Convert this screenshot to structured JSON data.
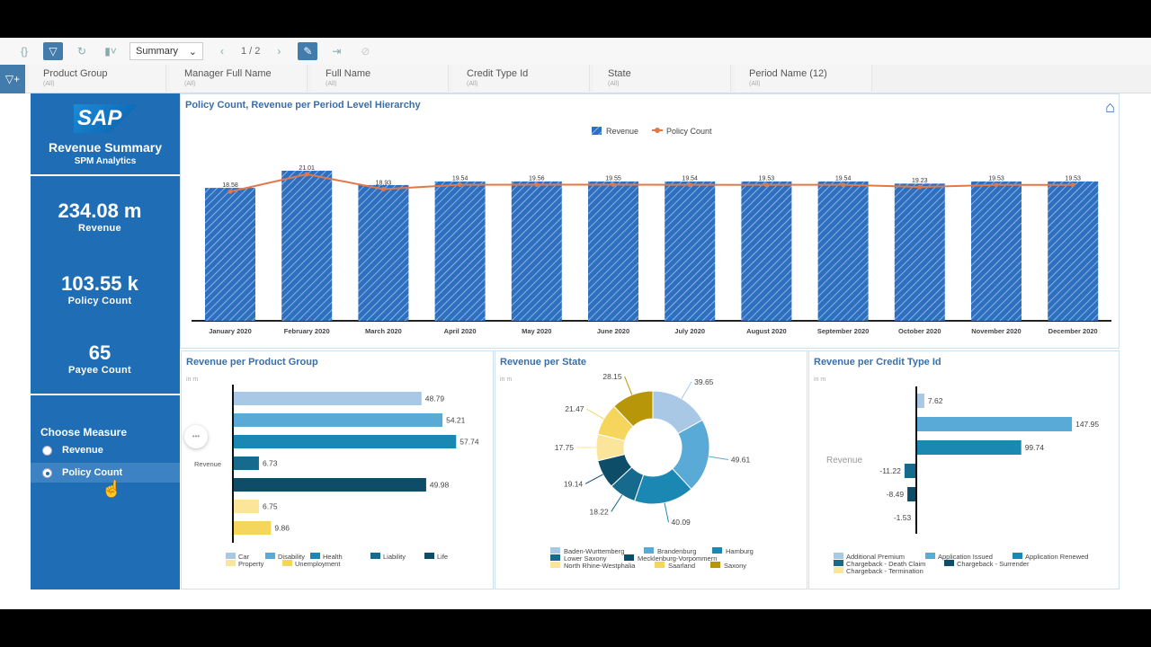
{
  "toolbar": {
    "story_menu": "{}",
    "page_select": "Summary",
    "page_nav": "1 / 2",
    "icons": [
      "braces-icon",
      "filter-icon",
      "refresh-icon",
      "bookmark-icon",
      "pin-icon",
      "export-icon",
      "disabled-icon"
    ]
  },
  "filters": [
    {
      "label": "Product Group",
      "value": "(All)"
    },
    {
      "label": "Manager Full Name",
      "value": "(All)"
    },
    {
      "label": "Full Name",
      "value": "(All)"
    },
    {
      "label": "Credit Type Id",
      "value": "(All)"
    },
    {
      "label": "State",
      "value": "(All)"
    },
    {
      "label": "Period Name (12)",
      "value": "(All)"
    }
  ],
  "sidebar": {
    "logo": "SAP",
    "title": "Revenue Summary",
    "subtitle": "SPM Analytics",
    "kpis": [
      {
        "value": "234.08 m",
        "label": "Revenue"
      },
      {
        "value": "103.55 k",
        "label": "Policy Count"
      },
      {
        "value": "65",
        "label": "Payee Count"
      }
    ],
    "measure_title": "Choose Measure",
    "options": [
      {
        "label": "Revenue",
        "selected": false
      },
      {
        "label": "Policy Count",
        "selected": true
      }
    ]
  },
  "colors": {
    "brand": "#1f6db5",
    "revenue": "#2f6fbf",
    "policy_line": "#e0784a"
  },
  "chart_data": [
    {
      "type": "bar+line",
      "title": "Policy Count, Revenue per Period Level Hierarchy",
      "legend": [
        "Revenue",
        "Policy Count"
      ],
      "legend_position": "top",
      "categories": [
        "January 2020",
        "February 2020",
        "March 2020",
        "April 2020",
        "May 2020",
        "June 2020",
        "July 2020",
        "August 2020",
        "September 2020",
        "October 2020",
        "November 2020",
        "December 2020"
      ],
      "series": [
        {
          "name": "Revenue",
          "type": "bar",
          "values": [
            18.6,
            21.0,
            19.0,
            19.5,
            19.5,
            19.5,
            19.5,
            19.5,
            19.5,
            19.2,
            19.5,
            19.5
          ]
        },
        {
          "name": "Policy Count",
          "type": "line",
          "values": [
            18.58,
            21.01,
            18.93,
            19.54,
            19.56,
            19.55,
            19.54,
            19.53,
            19.54,
            19.23,
            19.53,
            19.53
          ]
        }
      ]
    },
    {
      "type": "bar",
      "orientation": "horizontal",
      "title": "Revenue per Product Group",
      "unit": "in m",
      "axis_label": "Revenue",
      "categories": [
        "Car",
        "Disability",
        "Health",
        "Liability",
        "Life",
        "Property",
        "Unemployment"
      ],
      "values": [
        48.79,
        54.21,
        57.74,
        6.73,
        49.98,
        6.75,
        9.86
      ],
      "colors": [
        "#a8c8e6",
        "#5aaad8",
        "#1b88b4",
        "#156a8e",
        "#0e4d68",
        "#fbe59a",
        "#f6d55c"
      ]
    },
    {
      "type": "pie",
      "donut": true,
      "title": "Revenue per State",
      "unit": "in m",
      "categories": [
        "Baden-Wurttemberg",
        "Brandenburg",
        "Hamburg",
        "Lower Saxony",
        "Mecklenburg-Vorpommern",
        "North Rhine-Westphalia",
        "Saarland",
        "Saxony"
      ],
      "values": [
        39.65,
        49.61,
        40.09,
        18.22,
        19.14,
        17.75,
        21.47,
        28.15
      ],
      "colors": [
        "#a8c8e6",
        "#5aaad8",
        "#1b88b4",
        "#156a8e",
        "#0e4d68",
        "#fbe59a",
        "#f6d55c",
        "#b8960a"
      ]
    },
    {
      "type": "bar",
      "orientation": "horizontal",
      "title": "Revenue per Credit Type Id",
      "unit": "in m",
      "axis_label": "Revenue",
      "categories": [
        "Additional Premium",
        "Application Issued",
        "Application Renewed",
        "Chargeback - Death Claim",
        "Chargeback - Surrender",
        "Chargeback - Termination"
      ],
      "values": [
        7.62,
        147.95,
        99.74,
        -11.22,
        -8.49,
        -1.53
      ],
      "colors": [
        "#a8c8e6",
        "#5aaad8",
        "#1b88b4",
        "#156a8e",
        "#0e4d68",
        "#fbe59a"
      ]
    }
  ]
}
